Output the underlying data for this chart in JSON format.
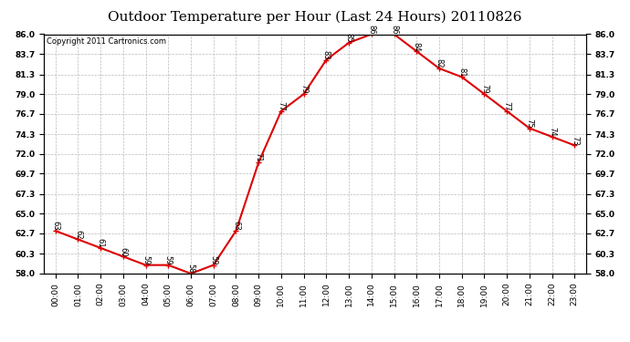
{
  "title": "Outdoor Temperature per Hour (Last 24 Hours) 20110826",
  "copyright_text": "Copyright 2011 Cartronics.com",
  "hours": [
    "00:00",
    "01:00",
    "02:00",
    "03:00",
    "04:00",
    "05:00",
    "06:00",
    "07:00",
    "08:00",
    "09:00",
    "10:00",
    "11:00",
    "12:00",
    "13:00",
    "14:00",
    "15:00",
    "16:00",
    "17:00",
    "18:00",
    "19:00",
    "20:00",
    "21:00",
    "22:00",
    "23:00"
  ],
  "temps": [
    63,
    62,
    61,
    60,
    59,
    59,
    58,
    59,
    63,
    71,
    77,
    79,
    83,
    85,
    86,
    86,
    84,
    82,
    81,
    79,
    77,
    75,
    74,
    73
  ],
  "ylim_min": 58.0,
  "ylim_max": 86.0,
  "yticks": [
    58.0,
    60.3,
    62.7,
    65.0,
    67.3,
    69.7,
    72.0,
    74.3,
    76.7,
    79.0,
    81.3,
    83.7,
    86.0
  ],
  "line_color": "#dd0000",
  "marker_color": "#dd0000",
  "bg_color": "#ffffff",
  "grid_color": "#bbbbbb",
  "text_color": "#000000",
  "title_fontsize": 11,
  "tick_fontsize": 6.5,
  "annotation_fontsize": 6,
  "copyright_fontsize": 6
}
